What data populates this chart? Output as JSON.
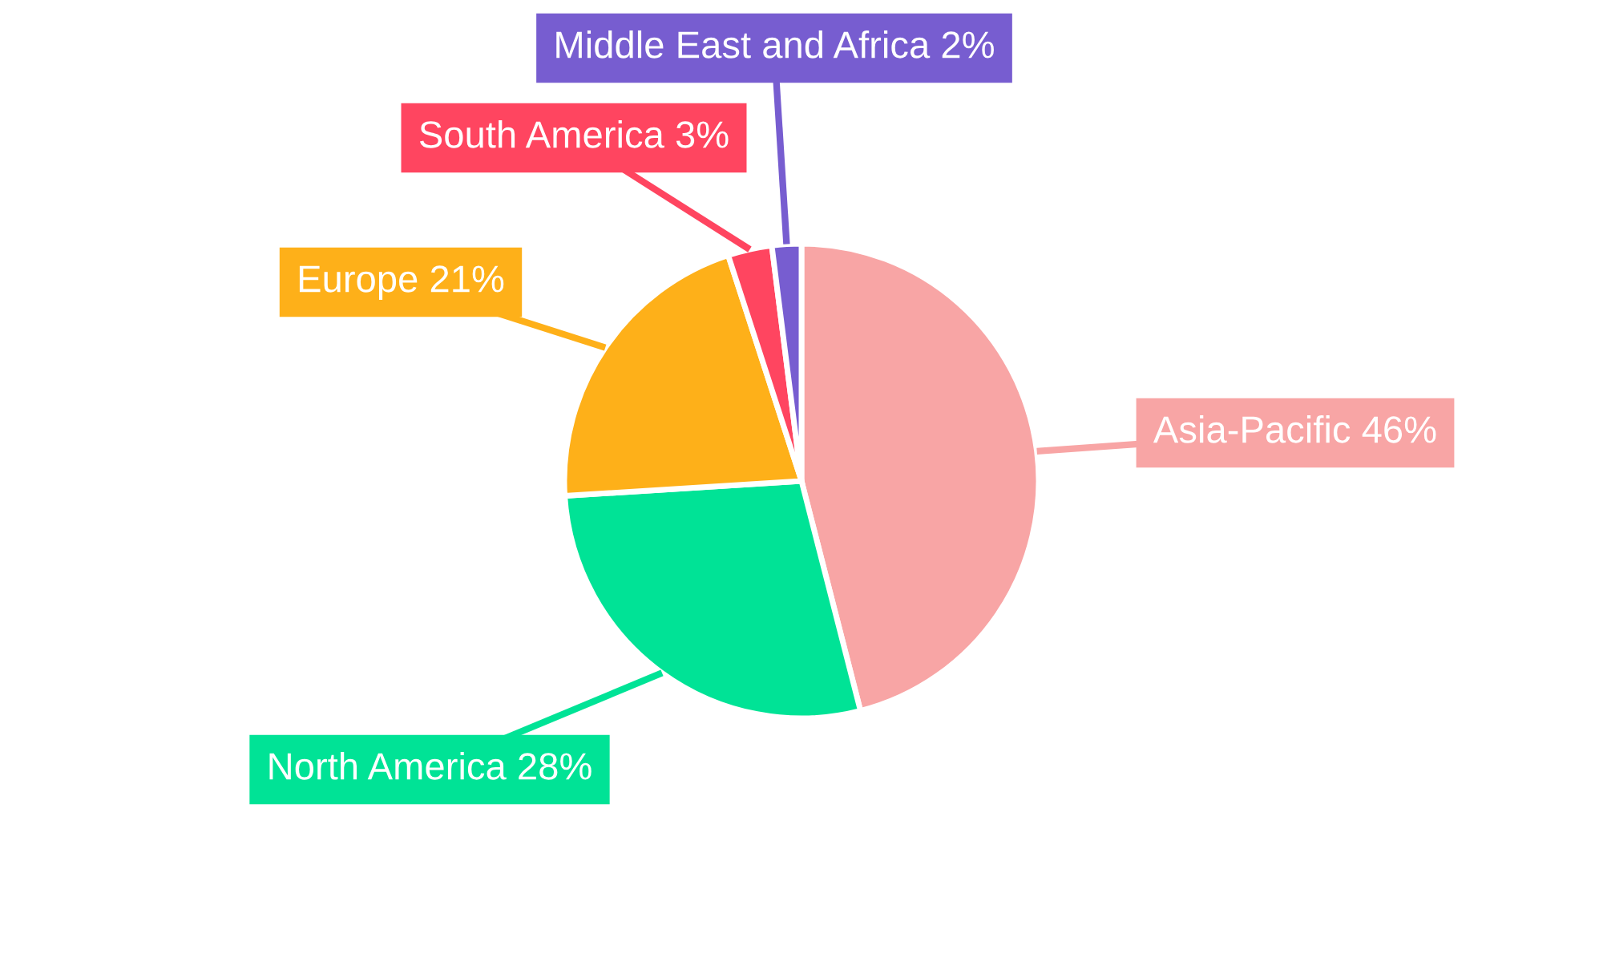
{
  "chart_data": {
    "type": "pie",
    "categories": [
      "Asia-Pacific",
      "North America",
      "Europe",
      "South America",
      "Middle East and Africa"
    ],
    "values": [
      46,
      28,
      21,
      3,
      2
    ],
    "value_labels": [
      "46%",
      "28%",
      "21%",
      "3%",
      "2%"
    ],
    "colors": [
      "#f8a5a5",
      "#00e396",
      "#feb019",
      "#ff4560",
      "#775dd0"
    ],
    "legend": false
  }
}
